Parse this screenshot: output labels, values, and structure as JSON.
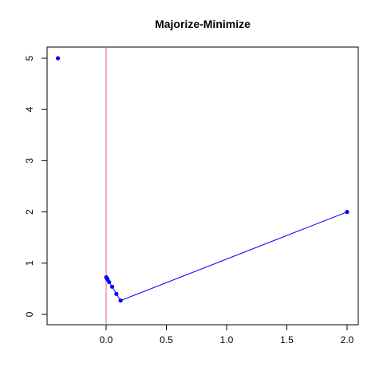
{
  "chart_data": {
    "type": "scatter",
    "title": "Majorize-Minimize",
    "xlabel": "",
    "ylabel": "",
    "xlim": [
      -0.4,
      2.0
    ],
    "ylim": [
      0,
      5
    ],
    "x_ticks": [
      0.0,
      0.5,
      1.0,
      1.5,
      2.0
    ],
    "x_tick_labels": [
      "0.0",
      "0.5",
      "1.0",
      "1.5",
      "2.0"
    ],
    "y_ticks": [
      0,
      1,
      2,
      3,
      4,
      5
    ],
    "y_tick_labels": [
      "0",
      "1",
      "2",
      "3",
      "4",
      "5"
    ],
    "grid": false,
    "vertical_line": {
      "x": 0.0,
      "color": "#e06666"
    },
    "isolated_point": {
      "x": -0.4,
      "y": 5.0
    },
    "path_points": [
      {
        "x": 2.0,
        "y": 2.0
      },
      {
        "x": 0.12,
        "y": 0.27
      },
      {
        "x": 0.085,
        "y": 0.4
      },
      {
        "x": 0.05,
        "y": 0.54
      },
      {
        "x": 0.025,
        "y": 0.63
      },
      {
        "x": 0.012,
        "y": 0.68
      },
      {
        "x": 0.005,
        "y": 0.71
      },
      {
        "x": 0.001,
        "y": 0.725
      }
    ],
    "point_color": "#0000ff",
    "line_color": "#0000ff"
  }
}
